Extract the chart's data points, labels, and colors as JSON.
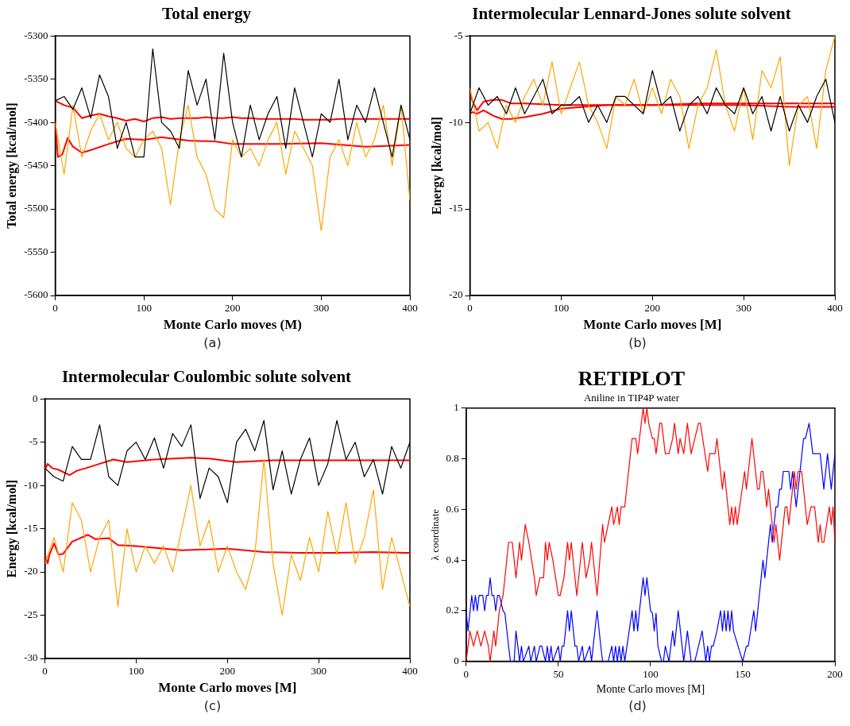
{
  "chart_data": [
    {
      "type": "line",
      "title": "Total energy",
      "xlabel": "Monte Carlo moves (M)",
      "ylabel": "Total energy [kcal/mol]",
      "annotations": [
        "(a)"
      ],
      "xlim": [
        0,
        400
      ],
      "xticks": [
        0,
        100,
        200,
        300,
        400
      ],
      "ylim": [
        -5600,
        -5300
      ],
      "yticks": [
        -5600,
        -5550,
        -5500,
        -5450,
        -5400,
        -5350,
        -5300
      ],
      "grid": false,
      "x": [
        0,
        10,
        20,
        30,
        40,
        50,
        60,
        70,
        80,
        90,
        100,
        110,
        120,
        130,
        140,
        150,
        160,
        170,
        180,
        190,
        200,
        210,
        220,
        230,
        240,
        250,
        260,
        270,
        280,
        290,
        300,
        310,
        320,
        330,
        340,
        350,
        360,
        370,
        380,
        390,
        400
      ],
      "series": [
        {
          "color": "#000000",
          "values": [
            -5375,
            -5370,
            -5385,
            -5360,
            -5395,
            -5345,
            -5370,
            -5430,
            -5400,
            -5440,
            -5440,
            -5315,
            -5400,
            -5410,
            -5430,
            -5340,
            -5380,
            -5350,
            -5420,
            -5320,
            -5400,
            -5440,
            -5380,
            -5420,
            -5390,
            -5370,
            -5430,
            -5360,
            -5400,
            -5440,
            -5390,
            -5400,
            -5350,
            -5420,
            -5380,
            -5400,
            -5360,
            -5400,
            -5440,
            -5380,
            -5420
          ]
        },
        {
          "color": "#ffa500",
          "values": [
            -5400,
            -5460,
            -5380,
            -5440,
            -5410,
            -5390,
            -5420,
            -5400,
            -5430,
            -5440,
            -5420,
            -5410,
            -5430,
            -5495,
            -5420,
            -5380,
            -5440,
            -5460,
            -5500,
            -5510,
            -5420,
            -5440,
            -5430,
            -5450,
            -5420,
            -5400,
            -5460,
            -5410,
            -5430,
            -5450,
            -5525,
            -5440,
            -5420,
            -5450,
            -5400,
            -5440,
            -5420,
            -5380,
            -5450,
            -5380,
            -5490
          ]
        },
        {
          "color": "#ff0000",
          "values": [
            -5375,
            -5380,
            -5383,
            -5395,
            -5392,
            -5390,
            -5393,
            -5395,
            -5398,
            -5396,
            -5399,
            -5395,
            -5394,
            -5396,
            -5395,
            -5395,
            -5395,
            -5394,
            -5395,
            -5395,
            -5394,
            -5395,
            -5395,
            -5396,
            -5396,
            -5396,
            -5396,
            -5396,
            -5397,
            -5397,
            -5397,
            -5397,
            -5396,
            -5396,
            -5396,
            -5396,
            -5396,
            -5396,
            -5396,
            -5396,
            -5396
          ]
        },
        {
          "color": "#ff0000",
          "x": [
            0,
            3,
            8,
            14,
            20,
            30,
            40,
            60,
            80,
            100,
            120,
            150,
            180,
            200,
            250,
            300,
            350,
            400
          ],
          "values": [
            -5400,
            -5440,
            -5437,
            -5418,
            -5428,
            -5435,
            -5432,
            -5425,
            -5419,
            -5420,
            -5417,
            -5421,
            -5422,
            -5425,
            -5425,
            -5424,
            -5428,
            -5426
          ]
        }
      ]
    },
    {
      "type": "line",
      "title": "Intermolecular Lennard-Jones solute solvent",
      "xlabel": "Monte Carlo moves [M]",
      "ylabel": "Energy [kcal/mol]",
      "annotations": [
        "(b)"
      ],
      "xlim": [
        0,
        400
      ],
      "xticks": [
        0,
        100,
        200,
        300,
        400
      ],
      "ylim": [
        -20,
        -5
      ],
      "yticks": [
        -20,
        -15,
        -10,
        -5
      ],
      "grid": false,
      "x": [
        0,
        10,
        20,
        30,
        40,
        50,
        60,
        70,
        80,
        90,
        100,
        110,
        120,
        130,
        140,
        150,
        160,
        170,
        180,
        190,
        200,
        210,
        220,
        230,
        240,
        250,
        260,
        270,
        280,
        290,
        300,
        310,
        320,
        330,
        340,
        350,
        360,
        370,
        380,
        390,
        400
      ],
      "series": [
        {
          "color": "#000000",
          "values": [
            -9.5,
            -8,
            -9,
            -8.5,
            -9.5,
            -8,
            -9.5,
            -8.5,
            -7.5,
            -9.5,
            -9,
            -9,
            -8.5,
            -10,
            -9,
            -10,
            -8.5,
            -8.5,
            -9,
            -9.5,
            -7,
            -9,
            -8.5,
            -10.5,
            -9,
            -8.5,
            -9.5,
            -8,
            -9,
            -9.5,
            -8,
            -9.5,
            -8.5,
            -10.5,
            -8.5,
            -10.5,
            -9,
            -10,
            -8.5,
            -7.5,
            -10
          ]
        },
        {
          "color": "#ffa500",
          "values": [
            -8,
            -10.5,
            -10,
            -11.5,
            -9,
            -10,
            -8.5,
            -7.5,
            -9,
            -6.5,
            -9.5,
            -8,
            -6.5,
            -9,
            -10,
            -11.5,
            -8.5,
            -9,
            -7.5,
            -9.5,
            -8,
            -9.5,
            -7.5,
            -8.5,
            -11.5,
            -9,
            -8,
            -5.8,
            -9,
            -10.5,
            -8,
            -11,
            -7,
            -8,
            -6.2,
            -12.5,
            -9,
            -8.5,
            -11.5,
            -7,
            -5
          ]
        },
        {
          "color": "#ff0000",
          "x": [
            0,
            3,
            8,
            15,
            25,
            35,
            45,
            60,
            80,
            100,
            150,
            200,
            250,
            300,
            350,
            400
          ],
          "values": [
            -8.2,
            -8.8,
            -9.3,
            -8.8,
            -8.7,
            -8.7,
            -8.9,
            -8.9,
            -8.95,
            -9,
            -9,
            -9,
            -9,
            -9,
            -9.1,
            -9.1
          ]
        },
        {
          "color": "#ff0000",
          "x": [
            0,
            3,
            8,
            15,
            25,
            35,
            45,
            60,
            80,
            100,
            150,
            200,
            250,
            300,
            350,
            400
          ],
          "values": [
            -9.5,
            -9.4,
            -9.5,
            -9.3,
            -9.6,
            -9.8,
            -9.8,
            -9.7,
            -9.5,
            -9.2,
            -9,
            -9,
            -8.9,
            -8.9,
            -8.9,
            -8.9
          ]
        }
      ]
    },
    {
      "type": "line",
      "title": "Intermolecular Coulombic solute solvent",
      "xlabel": "Monte Carlo moves [M]",
      "ylabel": "Energy [kcal/mol]",
      "annotations": [
        "(c)"
      ],
      "xlim": [
        0,
        400
      ],
      "xticks": [
        0,
        100,
        200,
        300,
        400
      ],
      "ylim": [
        -30,
        0
      ],
      "yticks": [
        -30,
        -25,
        -20,
        -15,
        -10,
        -5,
        0
      ],
      "grid": false,
      "x": [
        0,
        10,
        20,
        30,
        40,
        50,
        60,
        70,
        80,
        90,
        100,
        110,
        120,
        130,
        140,
        150,
        160,
        170,
        180,
        190,
        200,
        210,
        220,
        230,
        240,
        250,
        260,
        270,
        280,
        290,
        300,
        310,
        320,
        330,
        340,
        350,
        360,
        370,
        380,
        390,
        400
      ],
      "series": [
        {
          "color": "#000000",
          "values": [
            -8,
            -9,
            -9.5,
            -5.5,
            -7,
            -7,
            -3,
            -9,
            -10,
            -6,
            -5,
            -7,
            -4.5,
            -8,
            -4,
            -5.5,
            -3,
            -11.5,
            -8,
            -9,
            -12,
            -5,
            -3.5,
            -6,
            -2.5,
            -10.5,
            -6,
            -11,
            -7,
            -4.5,
            -10,
            -7.5,
            -2.5,
            -7,
            -5,
            -9,
            -7,
            -11,
            -5.5,
            -8,
            -5
          ]
        },
        {
          "color": "#ffa500",
          "values": [
            -19,
            -16,
            -20,
            -12,
            -14,
            -20,
            -16,
            -14,
            -24,
            -15,
            -20,
            -17,
            -19,
            -17,
            -20,
            -15,
            -10,
            -17,
            -14,
            -20,
            -17,
            -20,
            -22,
            -18,
            -7,
            -19,
            -25,
            -18,
            -21,
            -16,
            -20,
            -13,
            -18,
            -12,
            -19,
            -16,
            -10.5,
            -22,
            -16,
            -20,
            -24
          ]
        },
        {
          "color": "#ff0000",
          "x": [
            0,
            3,
            8,
            15,
            27,
            35,
            45,
            60,
            75,
            90,
            120,
            160,
            180,
            210,
            250,
            300,
            350,
            400
          ],
          "values": [
            -8.2,
            -7.5,
            -8,
            -8.2,
            -8.8,
            -8.3,
            -8,
            -7.5,
            -7,
            -7.3,
            -7,
            -6.8,
            -6.9,
            -7.3,
            -7.1,
            -7.1,
            -7.1,
            -7.1
          ]
        },
        {
          "color": "#ff0000",
          "x": [
            0,
            3,
            5,
            10,
            15,
            20,
            30,
            47,
            55,
            70,
            80,
            100,
            150,
            200,
            240,
            280,
            320,
            360,
            400
          ],
          "values": [
            -18,
            -19,
            -18,
            -16.7,
            -18,
            -17.9,
            -16.5,
            -15.7,
            -16.2,
            -16.1,
            -16.9,
            -17,
            -17.5,
            -17.3,
            -17.7,
            -17.8,
            -17.8,
            -17.7,
            -17.8
          ]
        }
      ]
    },
    {
      "type": "line",
      "title": "RETIPLOT",
      "subtitle": "Aniline in TIP4P water",
      "xlabel": "Monte Carlo moves [M]",
      "ylabel": "λ coordinate",
      "annotations": [
        "(d)"
      ],
      "xlim": [
        0,
        200
      ],
      "xticks": [
        0,
        50,
        100,
        150,
        200
      ],
      "ylim": [
        0,
        1
      ],
      "yticks": [
        0,
        0.2,
        0.4,
        0.6,
        0.8,
        1
      ],
      "grid": false,
      "series": [
        {
          "color": "#ff0000",
          "x": [
            0,
            2,
            4,
            6,
            8,
            10,
            12,
            13,
            15,
            16,
            18,
            20,
            23,
            25,
            27,
            29,
            30,
            32,
            34,
            37,
            38,
            40,
            42,
            43,
            44,
            45,
            47,
            50,
            51,
            53,
            55,
            56,
            57,
            60,
            63,
            65,
            67,
            68,
            71,
            74,
            75,
            77,
            79,
            80,
            82,
            83,
            84,
            86,
            90,
            92,
            93,
            96,
            97,
            98,
            99,
            101,
            102,
            103,
            105,
            106,
            108,
            110,
            112,
            113,
            115,
            116,
            118,
            120,
            122,
            124,
            126,
            127,
            131,
            132,
            135,
            136,
            139,
            140,
            143,
            144,
            145,
            146,
            147,
            151,
            152,
            155,
            158,
            159,
            160,
            161,
            163,
            164,
            167,
            168,
            170,
            173,
            174,
            175,
            178,
            179,
            180,
            182,
            185,
            187,
            189,
            191,
            192,
            193,
            194,
            197,
            198,
            199,
            200
          ],
          "values": [
            0,
            0.12,
            0.06,
            0.12,
            0.06,
            0.12,
            0.06,
            0,
            0.12,
            0.06,
            0.2,
            0.26,
            0.47,
            0.47,
            0.33,
            0.47,
            0.4,
            0.54,
            0.47,
            0.33,
            0.26,
            0.33,
            0.33,
            0.47,
            0.4,
            0.47,
            0.4,
            0.26,
            0.26,
            0.33,
            0.47,
            0.4,
            0.47,
            0.26,
            0.47,
            0.33,
            0.4,
            0.47,
            0.26,
            0.54,
            0.47,
            0.54,
            0.61,
            0.54,
            0.61,
            0.54,
            0.61,
            0.61,
            0.88,
            0.88,
            0.82,
            1,
            0.94,
            1,
            0.94,
            0.88,
            0.88,
            0.82,
            0.94,
            0.94,
            0.82,
            0.82,
            0.88,
            0.94,
            0.82,
            0.88,
            0.82,
            0.94,
            0.82,
            0.88,
            0.94,
            0.94,
            0.75,
            0.82,
            0.82,
            0.88,
            0.68,
            0.75,
            0.54,
            0.61,
            0.54,
            0.61,
            0.54,
            0.75,
            0.68,
            0.88,
            0.68,
            0.68,
            0.75,
            0.75,
            0.61,
            0.68,
            0.47,
            0.54,
            0.4,
            0.61,
            0.61,
            0.54,
            0.75,
            0.68,
            0.75,
            0.75,
            0.54,
            0.61,
            0.61,
            0.47,
            0.54,
            0.47,
            0.47,
            0.61,
            0.54,
            0.61,
            0.47
          ]
        },
        {
          "color": "#0000ff",
          "x": [
            0,
            1,
            3,
            4,
            5,
            6,
            7,
            9,
            10,
            11,
            12,
            13,
            14,
            15,
            16,
            17,
            18,
            20,
            21,
            23,
            24,
            26,
            27,
            29,
            30,
            31,
            34,
            35,
            37,
            38,
            40,
            41,
            43,
            44,
            45,
            46,
            47,
            50,
            51,
            52,
            53,
            55,
            56,
            57,
            59,
            60,
            61,
            63,
            64,
            67,
            68,
            71,
            73,
            74,
            77,
            79,
            80,
            81,
            82,
            83,
            84,
            85,
            86,
            90,
            91,
            92,
            93,
            94,
            96,
            97,
            98,
            100,
            101,
            102,
            103,
            104,
            106,
            107,
            108,
            110,
            112,
            113,
            115,
            118,
            120,
            122,
            124,
            128,
            129,
            130,
            131,
            132,
            133,
            134,
            136,
            138,
            139,
            140,
            141,
            142,
            143,
            144,
            145,
            150,
            152,
            153,
            156,
            157,
            160,
            161,
            162,
            165,
            166,
            168,
            169,
            170,
            171,
            172,
            175,
            176,
            177,
            179,
            183,
            184,
            186,
            188,
            192,
            194,
            196,
            197,
            198,
            200
          ],
          "values": [
            0.2,
            0.12,
            0.26,
            0.2,
            0.26,
            0.2,
            0.26,
            0.26,
            0.2,
            0.26,
            0.26,
            0.33,
            0.26,
            0.26,
            0.2,
            0.26,
            0.26,
            0.2,
            0.19,
            0.06,
            0,
            0,
            0.12,
            0,
            0.06,
            0,
            0.06,
            0,
            0.06,
            0,
            0.06,
            0.06,
            0,
            0.06,
            0,
            0.06,
            0,
            0.06,
            0,
            0.06,
            0.06,
            0.2,
            0.12,
            0.2,
            0.06,
            0.06,
            0,
            0.06,
            0,
            0.06,
            0,
            0.2,
            0.06,
            0,
            0,
            0.06,
            0,
            0.06,
            0,
            0.06,
            0,
            0.06,
            0,
            0.2,
            0.12,
            0.2,
            0.12,
            0.2,
            0.33,
            0.26,
            0.33,
            0.2,
            0.19,
            0.12,
            0.19,
            0.06,
            0,
            0,
            0.06,
            0,
            0.12,
            0.06,
            0.2,
            0,
            0.12,
            0,
            0,
            0.12,
            0.06,
            0,
            0.06,
            0,
            0.06,
            0.06,
            0.12,
            0.2,
            0.12,
            0.2,
            0.12,
            0.2,
            0.12,
            0.2,
            0.12,
            0,
            0.06,
            0.06,
            0.2,
            0.12,
            0.33,
            0.4,
            0.33,
            0.54,
            0.47,
            0.61,
            0.61,
            0.68,
            0.68,
            0.75,
            0.75,
            0.68,
            0.75,
            0.61,
            0.88,
            0.88,
            0.94,
            0.82,
            0.82,
            0.68,
            0.82,
            0.75,
            0.68,
            0.82
          ]
        }
      ]
    }
  ]
}
